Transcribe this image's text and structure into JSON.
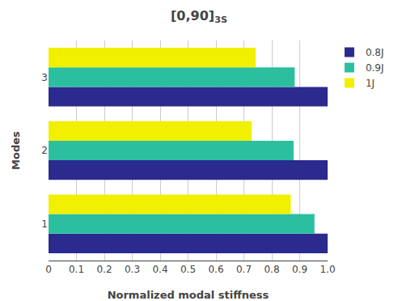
{
  "chart_data": {
    "type": "bar",
    "orientation": "horizontal",
    "title": "[0,90]",
    "title_subscript": "3S",
    "xlabel": "Normalized modal stiffness",
    "ylabel": "Modes",
    "categories": [
      "1",
      "2",
      "3"
    ],
    "series": [
      {
        "name": "0.8J",
        "color": "#2A2A8F",
        "values": [
          1.0,
          1.0,
          1.0
        ]
      },
      {
        "name": "0.9J",
        "color": "#2BBFA0",
        "values": [
          0.953,
          0.878,
          0.882
        ]
      },
      {
        "name": "1J",
        "color": "#F0F000",
        "values": [
          0.868,
          0.728,
          0.742
        ]
      }
    ],
    "xlim": [
      0,
      1.0
    ],
    "xticks": [
      0,
      0.1,
      0.2,
      0.3,
      0.4,
      0.5,
      0.6,
      0.7,
      0.8,
      0.9,
      {
        "value": 1.0,
        "label": "1.0"
      }
    ],
    "grid": true,
    "legend": "upper right"
  }
}
